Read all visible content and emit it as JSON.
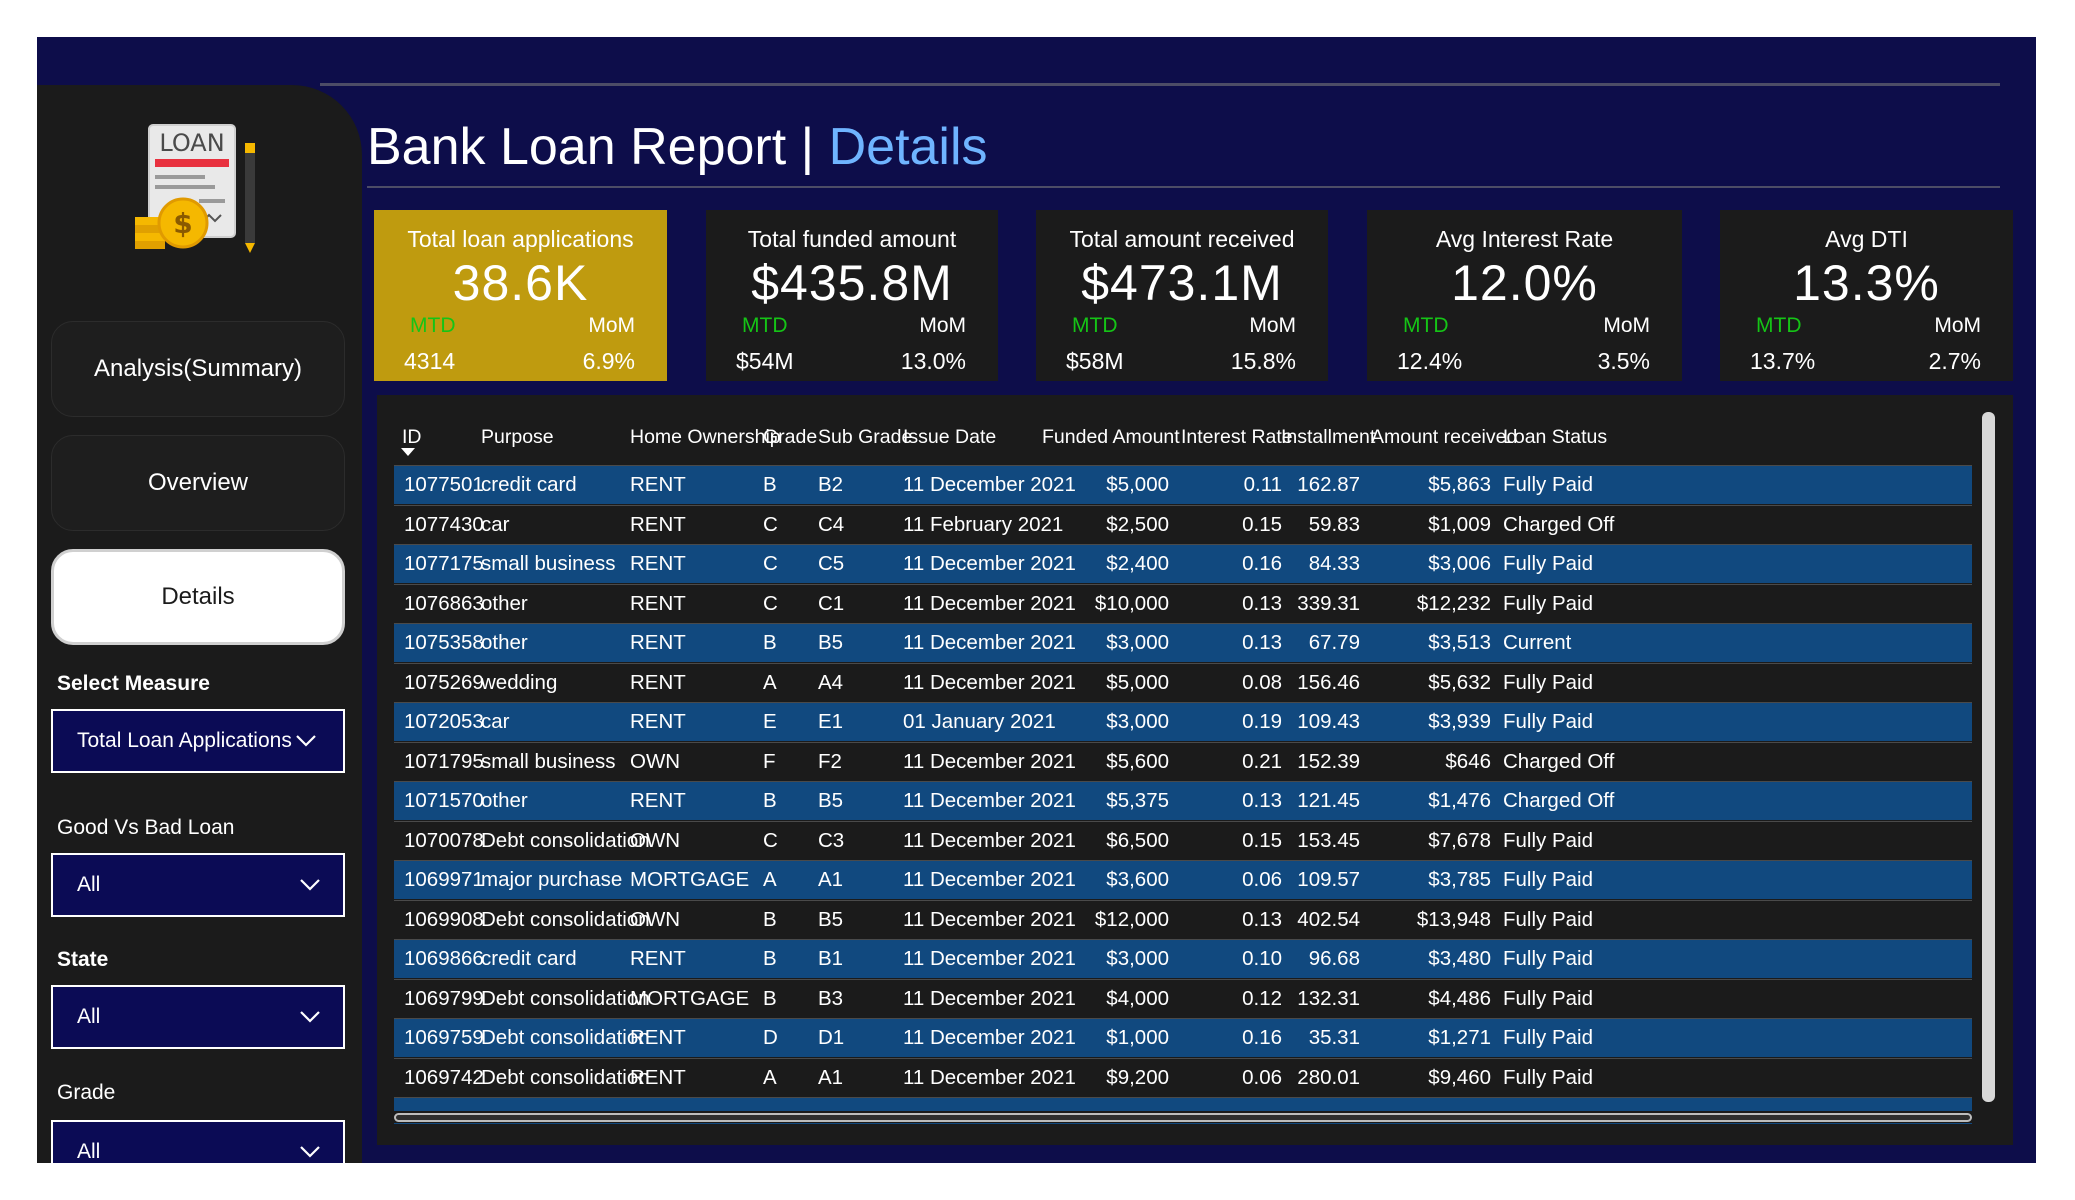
{
  "header": {
    "title_main": "Bank Loan Report |",
    "title_accent": "Details"
  },
  "logo": {
    "text": "LOAN",
    "icon": "loan-document-icon"
  },
  "sidebar": {
    "nav": [
      {
        "label": "Analysis(Summary)",
        "active": false
      },
      {
        "label": "Overview",
        "active": false
      },
      {
        "label": "Details",
        "active": true
      }
    ],
    "filters": [
      {
        "label": "Select Measure",
        "value": "Total Loan Applications"
      },
      {
        "label": "Good Vs Bad Loan",
        "value": "All"
      },
      {
        "label": "State",
        "value": "All"
      },
      {
        "label": "Grade",
        "value": "All"
      }
    ]
  },
  "kpis": [
    {
      "title": "Total loan applications",
      "value": "38.6K",
      "mtd_label": "MTD",
      "mom_label": "MoM",
      "mtd_value": "4314",
      "mom_value": "6.9%",
      "color": "#bf9b0f"
    },
    {
      "title": "Total funded amount",
      "value": "$435.8M",
      "mtd_label": "MTD",
      "mom_label": "MoM",
      "mtd_value": "$54M",
      "mom_value": "13.0%",
      "color": "#1b1b1b"
    },
    {
      "title": "Total amount received",
      "value": "$473.1M",
      "mtd_label": "MTD",
      "mom_label": "MoM",
      "mtd_value": "$58M",
      "mom_value": "15.8%",
      "color": "#1b1b1b"
    },
    {
      "title": "Avg Interest Rate",
      "value": "12.0%",
      "mtd_label": "MTD",
      "mom_label": "MoM",
      "mtd_value": "12.4%",
      "mom_value": "3.5%",
      "color": "#1b1b1b"
    },
    {
      "title": "Avg DTI",
      "value": "13.3%",
      "mtd_label": "MTD",
      "mom_label": "MoM",
      "mtd_value": "13.7%",
      "mom_value": "2.7%",
      "color": "#1b1b1b"
    }
  ],
  "table": {
    "columns": [
      "ID",
      "Purpose",
      "Home Ownership",
      "Grade",
      "Sub Grade",
      "Issue Date",
      "Funded Amount",
      "Interest Rate",
      "Installment",
      "Amount received",
      "Loan Status"
    ],
    "sort_column": "ID",
    "rows": [
      [
        "1077501",
        "credit card",
        "RENT",
        "B",
        "B2",
        "11 December 2021",
        "$5,000",
        "0.11",
        "162.87",
        "$5,863",
        "Fully Paid"
      ],
      [
        "1077430",
        "car",
        "RENT",
        "C",
        "C4",
        "11 February 2021",
        "$2,500",
        "0.15",
        "59.83",
        "$1,009",
        "Charged Off"
      ],
      [
        "1077175",
        "small business",
        "RENT",
        "C",
        "C5",
        "11 December 2021",
        "$2,400",
        "0.16",
        "84.33",
        "$3,006",
        "Fully Paid"
      ],
      [
        "1076863",
        "other",
        "RENT",
        "C",
        "C1",
        "11 December 2021",
        "$10,000",
        "0.13",
        "339.31",
        "$12,232",
        "Fully Paid"
      ],
      [
        "1075358",
        "other",
        "RENT",
        "B",
        "B5",
        "11 December 2021",
        "$3,000",
        "0.13",
        "67.79",
        "$3,513",
        "Current"
      ],
      [
        "1075269",
        "wedding",
        "RENT",
        "A",
        "A4",
        "11 December 2021",
        "$5,000",
        "0.08",
        "156.46",
        "$5,632",
        "Fully Paid"
      ],
      [
        "1072053",
        "car",
        "RENT",
        "E",
        "E1",
        "01 January 2021",
        "$3,000",
        "0.19",
        "109.43",
        "$3,939",
        "Fully Paid"
      ],
      [
        "1071795",
        "small business",
        "OWN",
        "F",
        "F2",
        "11 December 2021",
        "$5,600",
        "0.21",
        "152.39",
        "$646",
        "Charged Off"
      ],
      [
        "1071570",
        "other",
        "RENT",
        "B",
        "B5",
        "11 December 2021",
        "$5,375",
        "0.13",
        "121.45",
        "$1,476",
        "Charged Off"
      ],
      [
        "1070078",
        "Debt consolidation",
        "OWN",
        "C",
        "C3",
        "11 December 2021",
        "$6,500",
        "0.15",
        "153.45",
        "$7,678",
        "Fully Paid"
      ],
      [
        "1069971",
        "major purchase",
        "MORTGAGE",
        "A",
        "A1",
        "11 December 2021",
        "$3,600",
        "0.06",
        "109.57",
        "$3,785",
        "Fully Paid"
      ],
      [
        "1069908",
        "Debt consolidation",
        "OWN",
        "B",
        "B5",
        "11 December 2021",
        "$12,000",
        "0.13",
        "402.54",
        "$13,948",
        "Fully Paid"
      ],
      [
        "1069866",
        "credit card",
        "RENT",
        "B",
        "B1",
        "11 December 2021",
        "$3,000",
        "0.10",
        "96.68",
        "$3,480",
        "Fully Paid"
      ],
      [
        "1069799",
        "Debt consolidation",
        "MORTGAGE",
        "B",
        "B3",
        "11 December 2021",
        "$4,000",
        "0.12",
        "132.31",
        "$4,486",
        "Fully Paid"
      ],
      [
        "1069759",
        "Debt consolidation",
        "RENT",
        "D",
        "D1",
        "11 December 2021",
        "$1,000",
        "0.16",
        "35.31",
        "$1,271",
        "Fully Paid"
      ],
      [
        "1069742",
        "Debt consolidation",
        "RENT",
        "A",
        "A1",
        "11 December 2021",
        "$9,200",
        "0.06",
        "280.01",
        "$9,460",
        "Fully Paid"
      ]
    ]
  }
}
